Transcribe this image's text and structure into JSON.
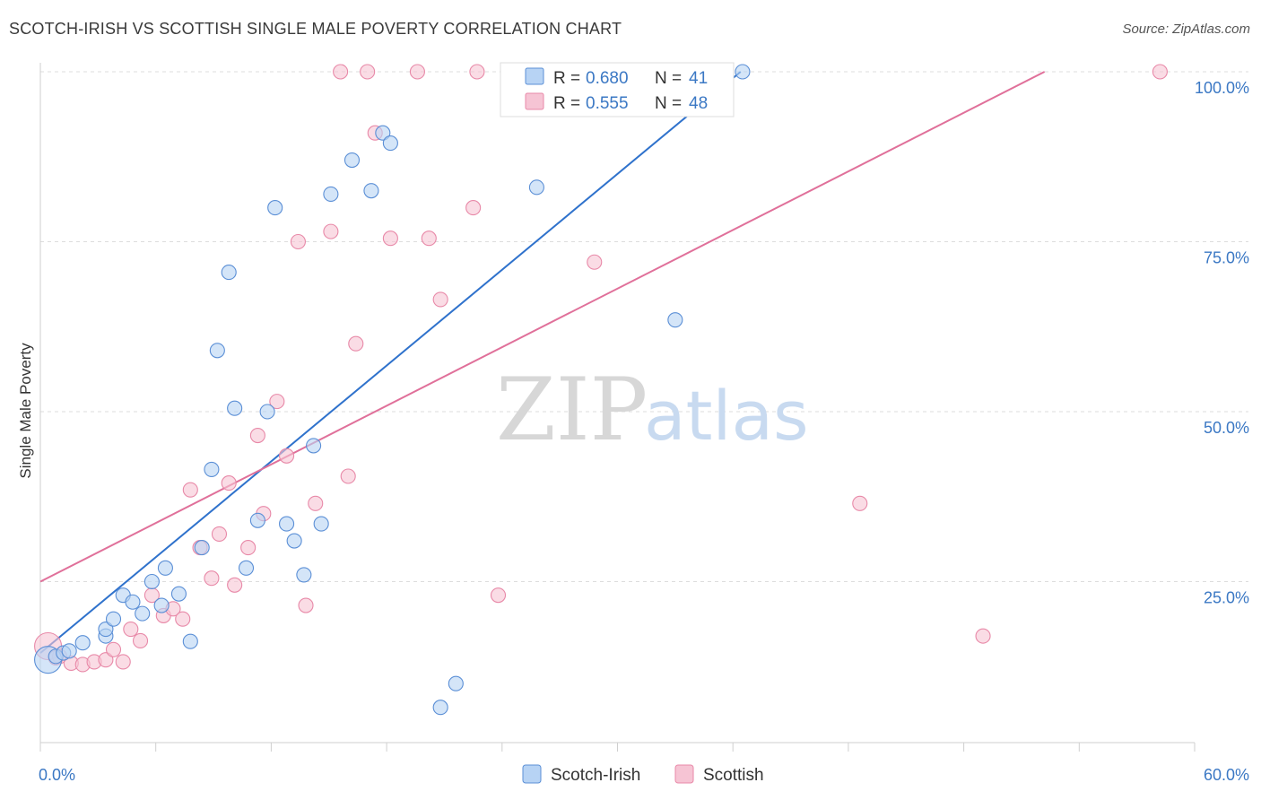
{
  "header": {
    "title": "SCOTCH-IRISH VS SCOTTISH SINGLE MALE POVERTY CORRELATION CHART",
    "source": "Source: ZipAtlas.com"
  },
  "watermark": {
    "zip": "ZIP",
    "atlas": "atlas"
  },
  "colors": {
    "blue_fill": "#b7d3f4",
    "blue_stroke": "#5b8fd6",
    "blue_line": "#2f72cc",
    "pink_fill": "#f6c4d4",
    "pink_stroke": "#e889a8",
    "pink_line": "#e0709a",
    "tick_text": "#3b78c4",
    "grid": "#dddddd"
  },
  "legend": {
    "rows": [
      {
        "r_label": "R =",
        "r_value": "0.680",
        "n_label": "N =",
        "n_value": "41"
      },
      {
        "r_label": "R =",
        "r_value": "0.555",
        "n_label": "N =",
        "n_value": "48"
      }
    ]
  },
  "chart_data": {
    "type": "scatter",
    "title": "SCOTCH-IRISH VS SCOTTISH SINGLE MALE POVERTY CORRELATION CHART",
    "xlabel": "",
    "ylabel": "Single Male Poverty",
    "xlim": [
      0,
      60
    ],
    "ylim": [
      0,
      100
    ],
    "x_tick_labels": [
      "0.0%",
      "60.0%"
    ],
    "y_tick_labels": [
      "25.0%",
      "50.0%",
      "75.0%",
      "100.0%"
    ],
    "y_ticks": [
      25,
      50,
      75,
      100
    ],
    "grid": true,
    "legend_placement": "top-center",
    "series": [
      {
        "name": "Scotch-Irish",
        "r": 0.68,
        "n": 41,
        "trend": {
          "x": [
            0,
            36.4
          ],
          "y": [
            14.5,
            100
          ]
        },
        "points": [
          {
            "x": 0.4,
            "y": 13.5,
            "big": true
          },
          {
            "x": 0.8,
            "y": 14.0
          },
          {
            "x": 1.2,
            "y": 14.5
          },
          {
            "x": 1.5,
            "y": 14.8
          },
          {
            "x": 2.2,
            "y": 16.0
          },
          {
            "x": 3.4,
            "y": 17.0
          },
          {
            "x": 3.4,
            "y": 18.0
          },
          {
            "x": 3.8,
            "y": 19.5
          },
          {
            "x": 4.3,
            "y": 23.0
          },
          {
            "x": 4.8,
            "y": 22.0
          },
          {
            "x": 5.3,
            "y": 20.3
          },
          {
            "x": 5.8,
            "y": 25.0
          },
          {
            "x": 6.5,
            "y": 27.0
          },
          {
            "x": 6.3,
            "y": 21.5
          },
          {
            "x": 7.2,
            "y": 23.2
          },
          {
            "x": 7.8,
            "y": 16.2
          },
          {
            "x": 8.4,
            "y": 30.0
          },
          {
            "x": 8.9,
            "y": 41.5
          },
          {
            "x": 9.2,
            "y": 59.0
          },
          {
            "x": 9.8,
            "y": 70.5
          },
          {
            "x": 10.1,
            "y": 50.5
          },
          {
            "x": 10.7,
            "y": 27.0
          },
          {
            "x": 11.3,
            "y": 34.0
          },
          {
            "x": 11.8,
            "y": 50.0
          },
          {
            "x": 12.2,
            "y": 80.0
          },
          {
            "x": 12.8,
            "y": 33.5
          },
          {
            "x": 13.2,
            "y": 31.0
          },
          {
            "x": 13.7,
            "y": 26.0
          },
          {
            "x": 14.2,
            "y": 45.0
          },
          {
            "x": 14.6,
            "y": 33.5
          },
          {
            "x": 15.1,
            "y": 82.0
          },
          {
            "x": 16.2,
            "y": 87.0
          },
          {
            "x": 17.2,
            "y": 82.5
          },
          {
            "x": 17.8,
            "y": 91.0
          },
          {
            "x": 18.2,
            "y": 89.5
          },
          {
            "x": 20.8,
            "y": 6.5
          },
          {
            "x": 21.6,
            "y": 10.0
          },
          {
            "x": 25.8,
            "y": 83.0
          },
          {
            "x": 33.0,
            "y": 63.5
          },
          {
            "x": 27.0,
            "y": 100
          },
          {
            "x": 36.5,
            "y": 100
          }
        ]
      },
      {
        "name": "Scottish",
        "r": 0.555,
        "n": 48,
        "trend": {
          "x": [
            0,
            52.2
          ],
          "y": [
            25.0,
            100
          ]
        },
        "points": [
          {
            "x": 0.4,
            "y": 15.5,
            "big": true
          },
          {
            "x": 1.0,
            "y": 14.0
          },
          {
            "x": 1.6,
            "y": 13.0
          },
          {
            "x": 2.2,
            "y": 12.8
          },
          {
            "x": 2.8,
            "y": 13.2
          },
          {
            "x": 3.4,
            "y": 13.5
          },
          {
            "x": 3.8,
            "y": 15.0
          },
          {
            "x": 4.3,
            "y": 13.2
          },
          {
            "x": 4.7,
            "y": 18.0
          },
          {
            "x": 5.2,
            "y": 16.3
          },
          {
            "x": 5.8,
            "y": 23.0
          },
          {
            "x": 6.4,
            "y": 20.0
          },
          {
            "x": 6.9,
            "y": 21.0
          },
          {
            "x": 7.4,
            "y": 19.5
          },
          {
            "x": 7.8,
            "y": 38.5
          },
          {
            "x": 8.3,
            "y": 30.0
          },
          {
            "x": 8.9,
            "y": 25.5
          },
          {
            "x": 9.3,
            "y": 32.0
          },
          {
            "x": 9.8,
            "y": 39.5
          },
          {
            "x": 10.1,
            "y": 24.5
          },
          {
            "x": 10.8,
            "y": 30.0
          },
          {
            "x": 11.3,
            "y": 46.5
          },
          {
            "x": 11.6,
            "y": 35.0
          },
          {
            "x": 12.3,
            "y": 51.5
          },
          {
            "x": 12.8,
            "y": 43.5
          },
          {
            "x": 13.4,
            "y": 75.0
          },
          {
            "x": 13.8,
            "y": 21.5
          },
          {
            "x": 14.3,
            "y": 36.5
          },
          {
            "x": 15.1,
            "y": 76.5
          },
          {
            "x": 15.6,
            "y": 100
          },
          {
            "x": 16.0,
            "y": 40.5
          },
          {
            "x": 16.4,
            "y": 60.0
          },
          {
            "x": 17.0,
            "y": 100
          },
          {
            "x": 17.4,
            "y": 91.0
          },
          {
            "x": 18.2,
            "y": 75.5
          },
          {
            "x": 19.6,
            "y": 100
          },
          {
            "x": 20.2,
            "y": 75.5
          },
          {
            "x": 20.8,
            "y": 66.5
          },
          {
            "x": 22.5,
            "y": 80.0
          },
          {
            "x": 22.7,
            "y": 100
          },
          {
            "x": 23.8,
            "y": 23.0
          },
          {
            "x": 24.3,
            "y": 100
          },
          {
            "x": 28.8,
            "y": 72.0
          },
          {
            "x": 31.5,
            "y": 100
          },
          {
            "x": 42.6,
            "y": 36.5
          },
          {
            "x": 49.0,
            "y": 17.0
          },
          {
            "x": 58.2,
            "y": 100
          },
          {
            "x": 0.8,
            "y": 13.8
          }
        ]
      }
    ]
  }
}
